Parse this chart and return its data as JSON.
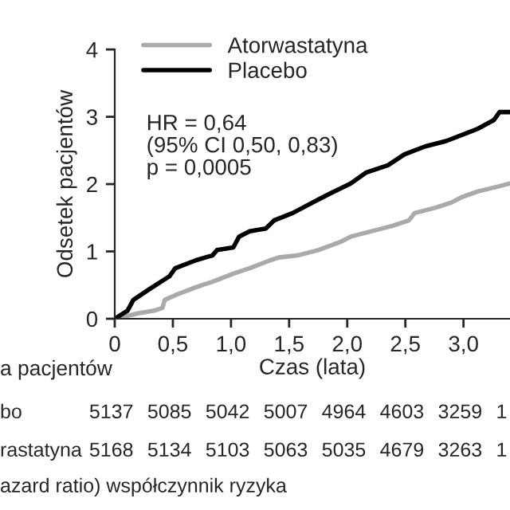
{
  "chart_data": {
    "type": "line",
    "xlabel": "Czas (lata)",
    "ylabel": "Odsetek pacjentów",
    "series": [
      {
        "name": "Atorwastatyna",
        "color": "#aaaaaa",
        "x": [
          0,
          0.2,
          0.34,
          0.41,
          0.43,
          0.52,
          0.7,
          0.84,
          1.02,
          1.16,
          1.34,
          1.41,
          1.57,
          1.75,
          1.94,
          2.03,
          2.21,
          2.39,
          2.53,
          2.58,
          2.76,
          2.9,
          2.99,
          3.12,
          3.31,
          3.4
        ],
        "values": [
          0,
          0.08,
          0.12,
          0.16,
          0.28,
          0.35,
          0.47,
          0.55,
          0.67,
          0.75,
          0.87,
          0.91,
          0.94,
          1.02,
          1.14,
          1.22,
          1.3,
          1.38,
          1.46,
          1.57,
          1.65,
          1.73,
          1.81,
          1.89,
          1.97,
          2.01
        ]
      },
      {
        "name": "Placebo",
        "color": "#000000",
        "x": [
          0,
          0.11,
          0.16,
          0.29,
          0.47,
          0.52,
          0.7,
          0.84,
          0.88,
          1.02,
          1.07,
          1.16,
          1.3,
          1.37,
          1.53,
          1.75,
          1.84,
          2.03,
          2.16,
          2.35,
          2.49,
          2.67,
          2.85,
          3.03,
          3.12,
          3.26,
          3.31,
          3.4
        ],
        "values": [
          0,
          0.12,
          0.28,
          0.43,
          0.63,
          0.75,
          0.87,
          0.94,
          1.02,
          1.06,
          1.22,
          1.3,
          1.34,
          1.46,
          1.57,
          1.77,
          1.85,
          2.01,
          2.17,
          2.28,
          2.44,
          2.56,
          2.64,
          2.76,
          2.82,
          2.95,
          3.07,
          3.07
        ]
      }
    ],
    "xlim": [
      0,
      3.4
    ],
    "xticks": [
      {
        "value": 0,
        "label": "0"
      },
      {
        "value": 0.5,
        "label": "0,5"
      },
      {
        "value": 1,
        "label": "1,0"
      },
      {
        "value": 1.5,
        "label": "1,5"
      },
      {
        "value": 2,
        "label": "2,0"
      },
      {
        "value": 2.5,
        "label": "2,5"
      },
      {
        "value": 3,
        "label": "3,0"
      }
    ],
    "ylim": [
      0,
      4
    ],
    "yticks": [
      0,
      1,
      2,
      3,
      4
    ],
    "legend": "top left",
    "grid": false,
    "annotations": [
      "HR = 0,64\n(95% CI 0,50, 0,83)\np = 0,0005",
      "a pacjentów",
      "bo",
      "5137",
      "5085",
      "5042",
      "5007",
      "4964",
      "4603",
      "3259",
      "1",
      "rastatyna",
      "5168",
      "5134",
      "5103",
      "5063",
      "5035",
      "4679",
      "3263",
      "1",
      "azard ratio) współczynnik ryzyka"
    ]
  }
}
